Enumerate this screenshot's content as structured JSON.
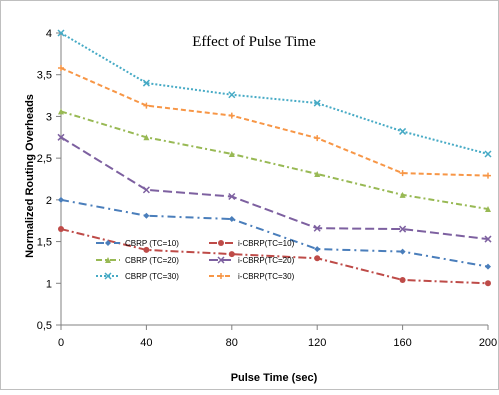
{
  "chart_data": {
    "type": "line",
    "title": "Effect of Pulse Time",
    "xlabel": "Pulse Time (sec)",
    "ylabel": "Normalized Routing Overheads",
    "x": [
      0,
      40,
      80,
      120,
      160,
      200
    ],
    "x_tick_labels": [
      "0",
      "40",
      "80",
      "120",
      "160",
      "200"
    ],
    "ylim": [
      0.5,
      4
    ],
    "y_ticks": [
      0.5,
      1,
      1.5,
      2,
      2.5,
      3,
      3.5,
      4
    ],
    "y_tick_labels": [
      "0,5",
      "1",
      "1,5",
      "2",
      "2,5",
      "3",
      "3,5",
      "4"
    ],
    "grid": false,
    "legend_position": "bottom-left",
    "series": [
      {
        "name": "CBRP (TC=10)",
        "values": [
          2.0,
          1.81,
          1.77,
          1.41,
          1.38,
          1.2
        ],
        "color": "#4a7ebb",
        "marker": "diamond",
        "dash": "8,4,2,4"
      },
      {
        "name": "i-CBRP(TC=10)",
        "values": [
          1.65,
          1.4,
          1.35,
          1.3,
          1.04,
          1.0
        ],
        "color": "#be4b48",
        "marker": "circle",
        "dash": "8,3,2,3"
      },
      {
        "name": "CBRP (TC=20)",
        "values": [
          3.06,
          2.75,
          2.55,
          2.31,
          2.06,
          1.89
        ],
        "color": "#98b954",
        "marker": "triangle",
        "dash": "6,3,2,3"
      },
      {
        "name": "i-CBRP(TC=20)",
        "values": [
          2.75,
          2.12,
          2.04,
          1.66,
          1.65,
          1.53
        ],
        "color": "#7d60a0",
        "marker": "x",
        "dash": "9,4"
      },
      {
        "name": "CBRP (TC=30)",
        "values": [
          4.0,
          3.4,
          3.26,
          3.16,
          2.82,
          2.55
        ],
        "color": "#46aac5",
        "marker": "x",
        "dash": "2,2"
      },
      {
        "name": "i-CBRP(TC=30)",
        "values": [
          3.58,
          3.13,
          3.01,
          2.74,
          2.32,
          2.29
        ],
        "color": "#f79646",
        "marker": "plus",
        "dash": "5,3"
      }
    ]
  }
}
